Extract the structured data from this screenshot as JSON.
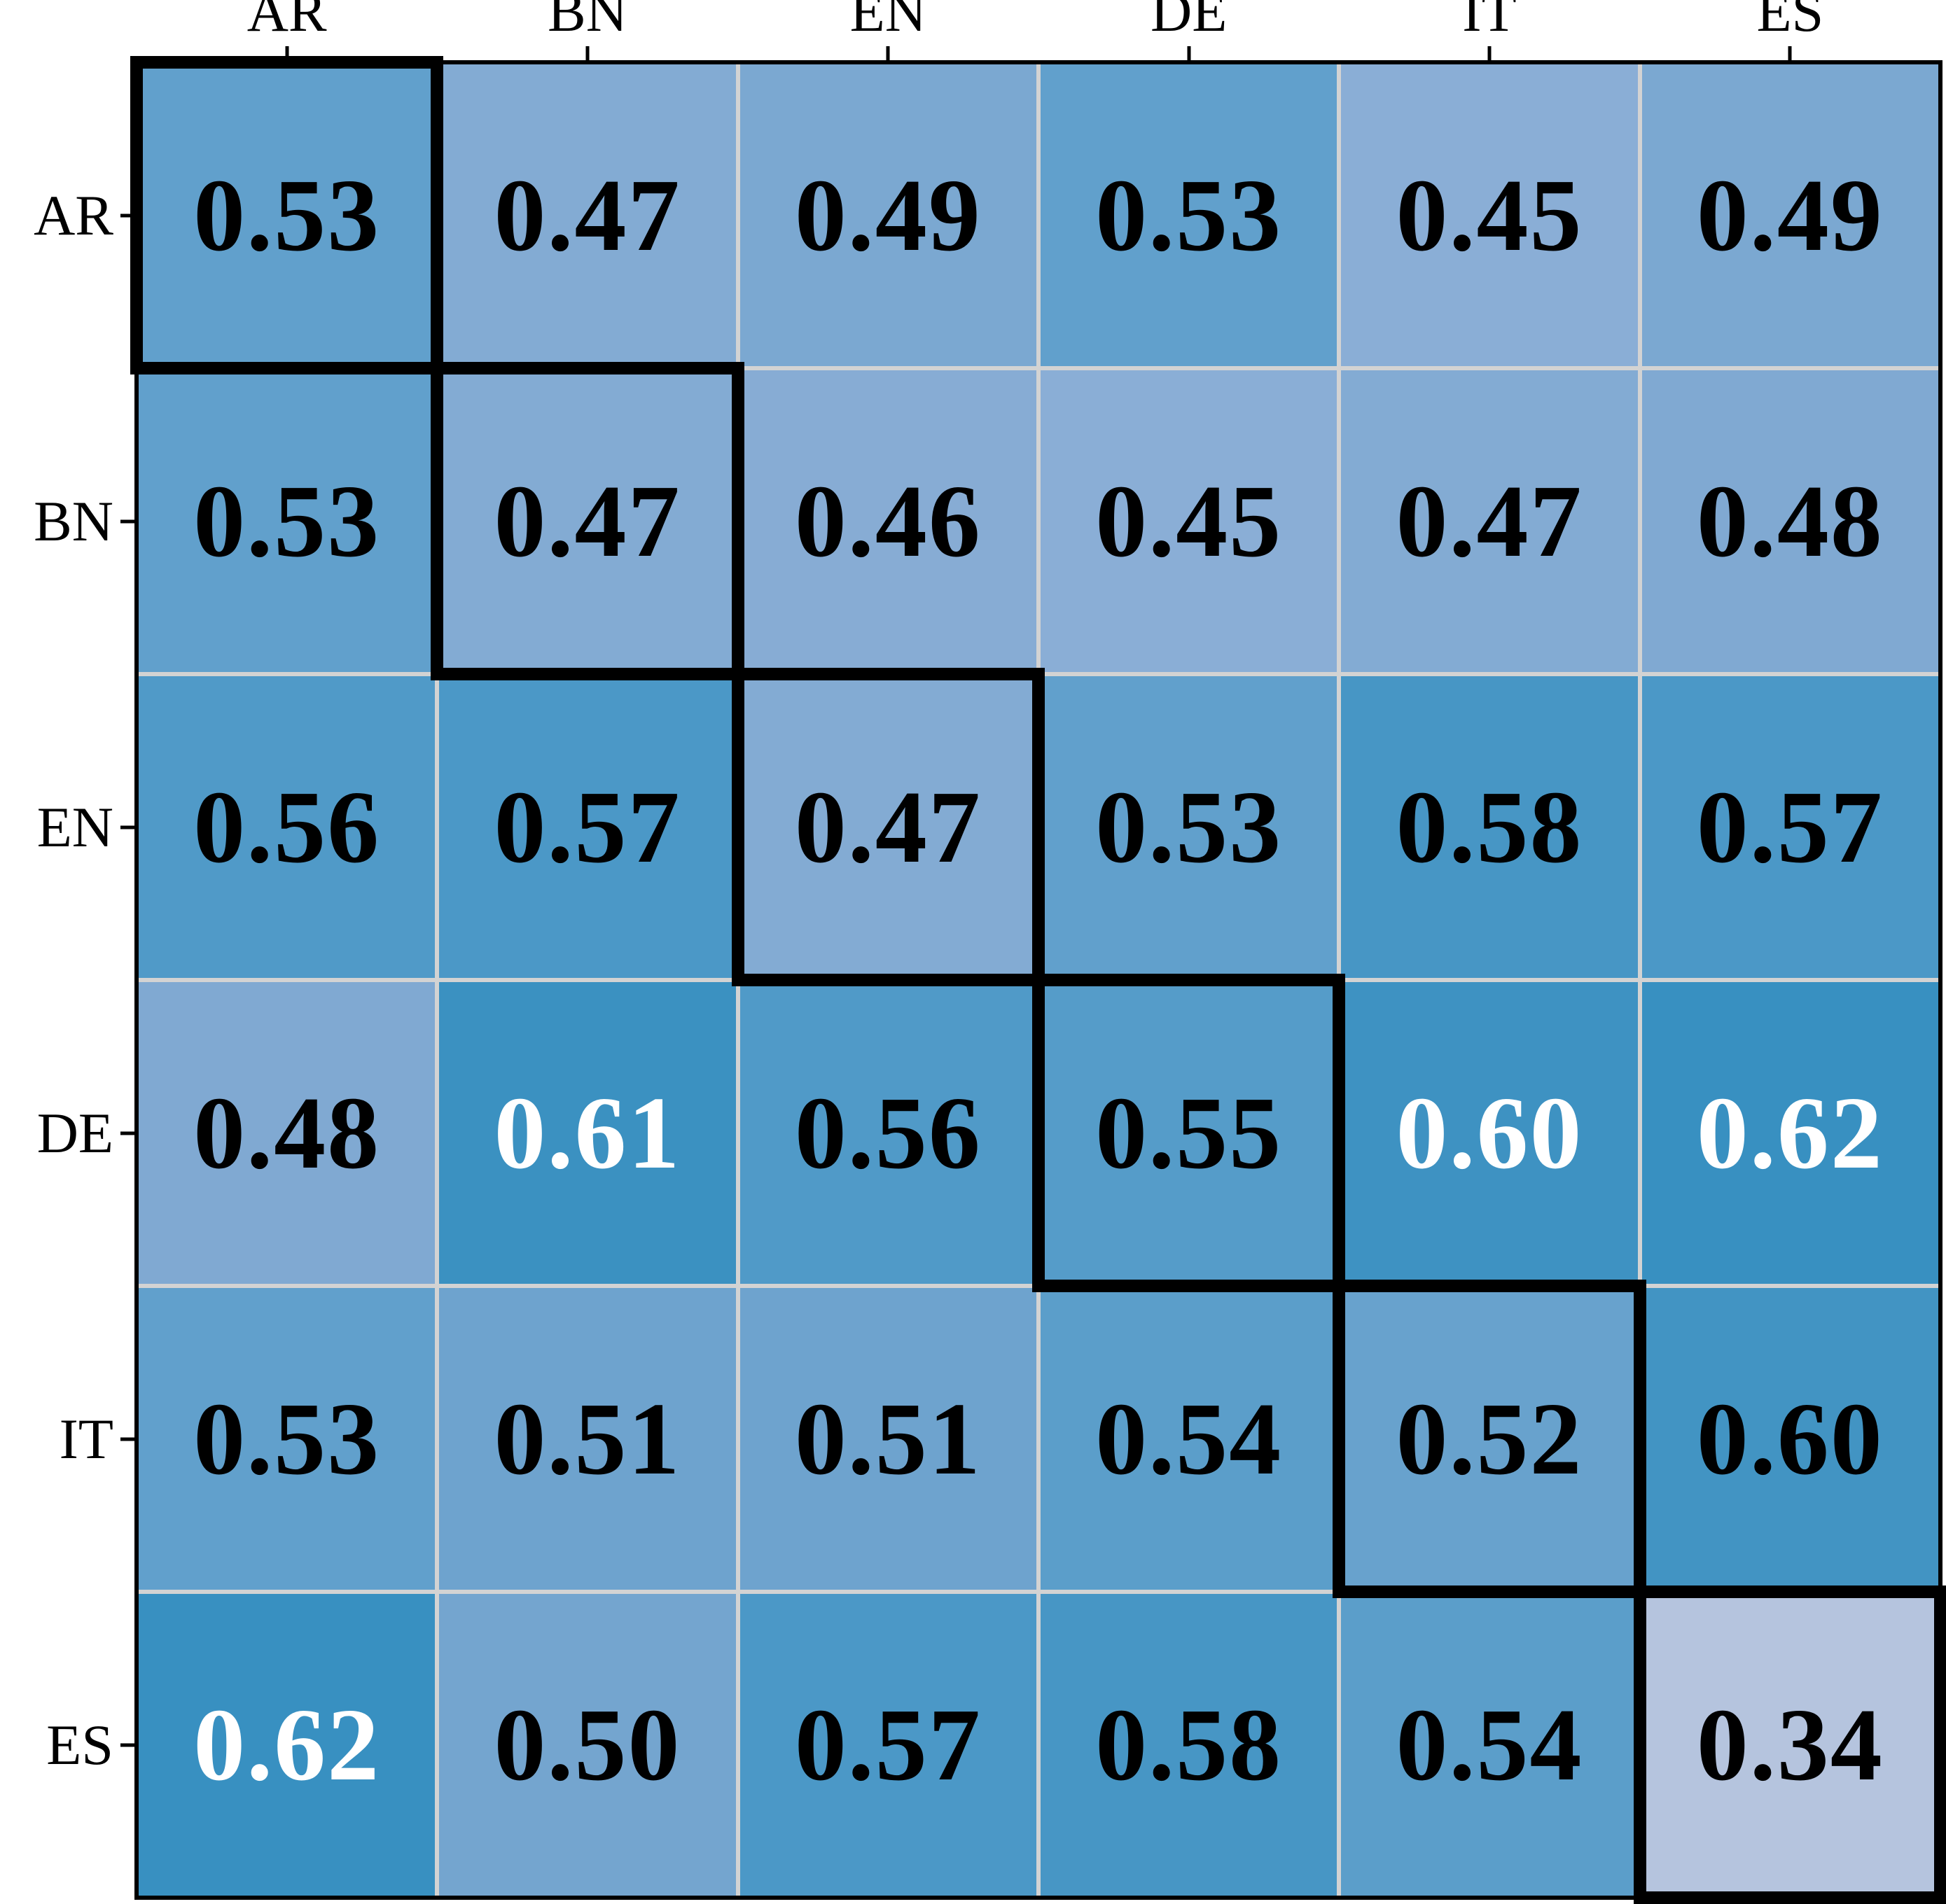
{
  "figure": {
    "background": "#ffffff",
    "spine_color": "#000000",
    "gridline_color": "#d3d3d3",
    "diagonal_outline_color": "#000000"
  },
  "chart_data": {
    "type": "heatmap",
    "title": "",
    "xlabel": "",
    "ylabel": "",
    "x_labels": [
      "AR",
      "BN",
      "EN",
      "DE",
      "IT",
      "ES"
    ],
    "y_labels": [
      "AR",
      "BN",
      "EN",
      "DE",
      "IT",
      "ES"
    ],
    "values": [
      [
        0.53,
        0.47,
        0.49,
        0.53,
        0.45,
        0.49
      ],
      [
        0.53,
        0.47,
        0.46,
        0.45,
        0.47,
        0.48
      ],
      [
        0.56,
        0.57,
        0.47,
        0.53,
        0.58,
        0.57
      ],
      [
        0.48,
        0.61,
        0.56,
        0.55,
        0.6,
        0.62
      ],
      [
        0.53,
        0.51,
        0.51,
        0.54,
        0.52,
        0.6
      ],
      [
        0.62,
        0.5,
        0.57,
        0.58,
        0.54,
        0.34
      ]
    ],
    "cell_colors": [
      [
        "#61a0cc",
        "#83abd3",
        "#7ba8d1",
        "#61a0cc",
        "#8aaed6",
        "#7ba8d1"
      ],
      [
        "#61a0cc",
        "#83abd3",
        "#87acd4",
        "#8aaed6",
        "#83abd3",
        "#80a9d2"
      ],
      [
        "#509ac8",
        "#4b98c7",
        "#83abd3",
        "#61a0cc",
        "#4796c5",
        "#4b98c7"
      ],
      [
        "#80a9d2",
        "#3b91c1",
        "#509ac8",
        "#559cc9",
        "#3e92c2",
        "#3890c1"
      ],
      [
        "#61a0cc",
        "#6ea3ce",
        "#6ea3ce",
        "#5b9eca",
        "#68a2cd",
        "#4294c3"
      ],
      [
        "#3890c1",
        "#74a5cf",
        "#4b98c7",
        "#4796c5",
        "#5b9eca",
        "#b5c4de"
      ]
    ],
    "text_colors": [
      [
        "black",
        "black",
        "black",
        "black",
        "black",
        "black"
      ],
      [
        "black",
        "black",
        "black",
        "black",
        "black",
        "black"
      ],
      [
        "black",
        "black",
        "black",
        "black",
        "black",
        "black"
      ],
      [
        "black",
        "white",
        "black",
        "black",
        "white",
        "white"
      ],
      [
        "black",
        "black",
        "black",
        "black",
        "black",
        "black"
      ],
      [
        "white",
        "black",
        "black",
        "black",
        "black",
        "black"
      ]
    ],
    "value_format_decimals": 2,
    "value_range": [
      0.34,
      0.62
    ],
    "colormap": {
      "low": "#b5c4de",
      "high": "#3890c1"
    },
    "diagonal_outlined": true,
    "grid": true,
    "legend_position": "none"
  }
}
